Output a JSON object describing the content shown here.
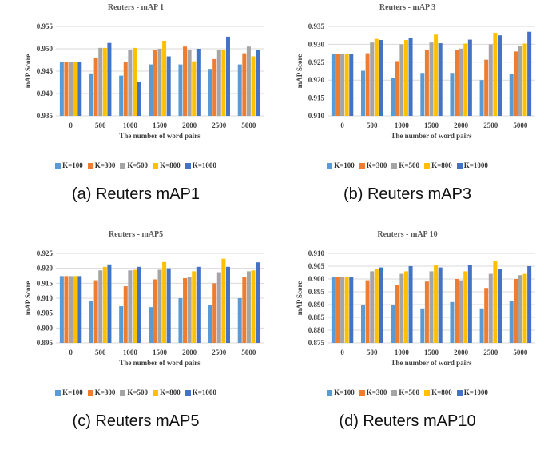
{
  "colors": {
    "K=100": "#5b9bd5",
    "K=300": "#ed7d31",
    "K=500": "#a5a5a5",
    "K=800": "#ffc000",
    "K=1000": "#4472c4",
    "grid": "#d9d9d9"
  },
  "legend": [
    "K=100",
    "K=300",
    "K=500",
    "K=800",
    "K=1000"
  ],
  "captions": [
    "(a) Reuters mAP1",
    "(b) Reuters mAP3",
    "(c) Reuters mAP5",
    "(d) Reuters mAP10"
  ],
  "chart_data": [
    {
      "type": "bar",
      "title": "Reuters - mAP 1",
      "xlabel": "The number of word pairs",
      "ylabel": "mAP Score",
      "categories": [
        "0",
        "500",
        "1000",
        "1500",
        "2000",
        "2500",
        "5000"
      ],
      "ylim": [
        0.935,
        0.955
      ],
      "yticks": [
        "0.935",
        "0.940",
        "0.945",
        "0.950",
        "0.955"
      ],
      "grid": true,
      "legend_position": "bottom",
      "series": [
        {
          "name": "K=100",
          "values": [
            0.947,
            0.9445,
            0.944,
            0.9465,
            0.9465,
            0.9455,
            0.9465
          ]
        },
        {
          "name": "K=300",
          "values": [
            0.947,
            0.948,
            0.947,
            0.9497,
            0.9505,
            0.9477,
            0.949
          ]
        },
        {
          "name": "K=500",
          "values": [
            0.947,
            0.9502,
            0.9497,
            0.95,
            0.9497,
            0.9497,
            0.9505
          ]
        },
        {
          "name": "K=800",
          "values": [
            0.947,
            0.9502,
            0.9502,
            0.9518,
            0.9472,
            0.9497,
            0.9483
          ]
        },
        {
          "name": "K=1000",
          "values": [
            0.947,
            0.9513,
            0.9426,
            0.9483,
            0.95,
            0.9527,
            0.9498
          ]
        }
      ]
    },
    {
      "type": "bar",
      "title": "Reuters - mAP 3",
      "xlabel": "The number of word pairs",
      "ylabel": "mAP Score",
      "categories": [
        "0",
        "500",
        "1000",
        "1500",
        "2000",
        "2500",
        "5000"
      ],
      "ylim": [
        0.91,
        0.935
      ],
      "yticks": [
        "0.910",
        "0.915",
        "0.920",
        "0.925",
        "0.930",
        "0.935"
      ],
      "grid": true,
      "legend_position": "bottom",
      "series": [
        {
          "name": "K=100",
          "values": [
            0.9272,
            0.9226,
            0.9206,
            0.922,
            0.922,
            0.92,
            0.9217
          ]
        },
        {
          "name": "K=300",
          "values": [
            0.9272,
            0.9275,
            0.9253,
            0.9283,
            0.9283,
            0.9257,
            0.928
          ]
        },
        {
          "name": "K=500",
          "values": [
            0.9272,
            0.9305,
            0.93,
            0.9305,
            0.9288,
            0.93,
            0.9295
          ]
        },
        {
          "name": "K=800",
          "values": [
            0.9272,
            0.9315,
            0.9312,
            0.9327,
            0.9302,
            0.9332,
            0.9302
          ]
        },
        {
          "name": "K=1000",
          "values": [
            0.9272,
            0.9312,
            0.9318,
            0.9303,
            0.9313,
            0.9325,
            0.9335
          ]
        }
      ]
    },
    {
      "type": "bar",
      "title": "Reuters - mAP5",
      "xlabel": "The number of word pairs",
      "ylabel": "mAP Score",
      "categories": [
        "0",
        "500",
        "1000",
        "1500",
        "2000",
        "2500",
        "5000"
      ],
      "ylim": [
        0.895,
        0.925
      ],
      "yticks": [
        "0.895",
        "0.900",
        "0.905",
        "0.910",
        "0.915",
        "0.920",
        "0.925"
      ],
      "grid": true,
      "legend_position": "bottom",
      "series": [
        {
          "name": "K=100",
          "values": [
            0.9174,
            0.909,
            0.9073,
            0.907,
            0.91,
            0.9077,
            0.91
          ]
        },
        {
          "name": "K=300",
          "values": [
            0.9174,
            0.916,
            0.914,
            0.9163,
            0.9167,
            0.915,
            0.917
          ]
        },
        {
          "name": "K=500",
          "values": [
            0.9174,
            0.9193,
            0.9193,
            0.9195,
            0.9172,
            0.9187,
            0.919
          ]
        },
        {
          "name": "K=800",
          "values": [
            0.9174,
            0.9205,
            0.9195,
            0.9221,
            0.919,
            0.9232,
            0.9193
          ]
        },
        {
          "name": "K=1000",
          "values": [
            0.9174,
            0.9213,
            0.9205,
            0.92,
            0.9205,
            0.9205,
            0.922
          ]
        }
      ]
    },
    {
      "type": "bar",
      "title": "Reuters - mAP 10",
      "xlabel": "The number of word pairs",
      "ylabel": "mAP Score",
      "categories": [
        "0",
        "500",
        "1000",
        "1500",
        "2000",
        "2500",
        "5000"
      ],
      "ylim": [
        0.875,
        0.91
      ],
      "yticks": [
        "0.875",
        "0.880",
        "0.885",
        "0.890",
        "0.895",
        "0.900",
        "0.905",
        "0.910"
      ],
      "grid": true,
      "legend_position": "bottom",
      "series": [
        {
          "name": "K=100",
          "values": [
            0.9008,
            0.89,
            0.89,
            0.8885,
            0.891,
            0.8885,
            0.8915
          ]
        },
        {
          "name": "K=300",
          "values": [
            0.9008,
            0.8995,
            0.8975,
            0.899,
            0.9,
            0.8965,
            0.9
          ]
        },
        {
          "name": "K=500",
          "values": [
            0.9008,
            0.903,
            0.902,
            0.903,
            0.8995,
            0.902,
            0.9015
          ]
        },
        {
          "name": "K=800",
          "values": [
            0.9008,
            0.904,
            0.903,
            0.9053,
            0.903,
            0.907,
            0.902
          ]
        },
        {
          "name": "K=1000",
          "values": [
            0.9008,
            0.9045,
            0.905,
            0.9045,
            0.9055,
            0.904,
            0.905
          ]
        }
      ]
    }
  ]
}
